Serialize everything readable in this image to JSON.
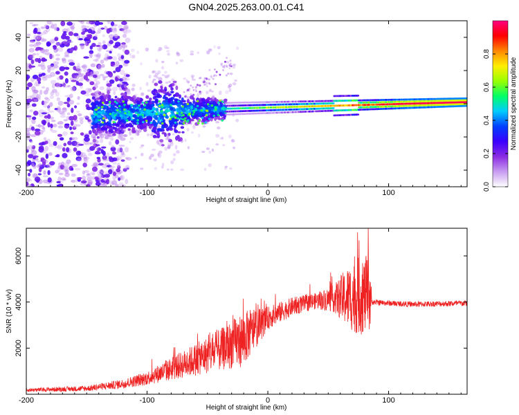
{
  "title": "GN04.2025.263.00.01.C41",
  "chart_data": [
    {
      "type": "heatmap",
      "name": "spectrogram",
      "xlabel": "Height of straight line (km)",
      "ylabel": "Frequency (Hz)",
      "xlim": [
        -200,
        165
      ],
      "ylim": [
        -50,
        50
      ],
      "xticks": [
        -200,
        -100,
        0,
        100
      ],
      "yticks": [
        -40,
        -20,
        0,
        20,
        40
      ],
      "colorbar": {
        "label": "Normalized spectral amplitude",
        "range": [
          0.0,
          1.0
        ],
        "ticks": [
          0.0,
          0.2,
          0.4,
          0.6,
          0.8
        ],
        "colormap": [
          "#ffffff",
          "#c89cf0",
          "#8a2be2",
          "#3a00ff",
          "#0040ff",
          "#00ccff",
          "#00ff66",
          "#99ff00",
          "#ffee00",
          "#ff8800",
          "#ff0000",
          "#ff0080"
        ]
      },
      "features": [
        {
          "label": "noise",
          "x_range": [
            -200,
            -115
          ],
          "freq_range": [
            -50,
            50
          ],
          "amplitude": 0.25
        },
        {
          "label": "onset",
          "x_range": [
            -145,
            -35
          ],
          "freq_range": [
            -30,
            15
          ],
          "amplitude": 0.45
        },
        {
          "label": "carrier",
          "x_range": [
            -35,
            165
          ],
          "center_freq": [
            -3,
            1
          ],
          "amplitude": 0.95
        }
      ]
    },
    {
      "type": "line",
      "name": "snr",
      "xlabel": "Height of straight line (km)",
      "ylabel": "SNR (10 * v/v)",
      "xlim": [
        -200,
        165
      ],
      "ylim": [
        0,
        7200
      ],
      "xticks": [
        -200,
        -100,
        0,
        100
      ],
      "yticks": [
        2000,
        4000,
        6000
      ],
      "color": "#ee2222",
      "envelope": {
        "x": [
          -200,
          -150,
          -120,
          -100,
          -80,
          -60,
          -40,
          -20,
          0,
          20,
          40,
          55,
          65,
          75,
          85,
          86,
          100,
          120,
          165
        ],
        "y": [
          180,
          250,
          450,
          700,
          1100,
          1500,
          1900,
          2400,
          3300,
          3800,
          4050,
          4150,
          4200,
          4250,
          4300,
          4000,
          3950,
          3900,
          3950
        ],
        "noise": [
          80,
          120,
          200,
          300,
          500,
          700,
          900,
          1200,
          500,
          400,
          350,
          600,
          1300,
          1700,
          1600,
          120,
          120,
          120,
          130
        ]
      }
    }
  ]
}
